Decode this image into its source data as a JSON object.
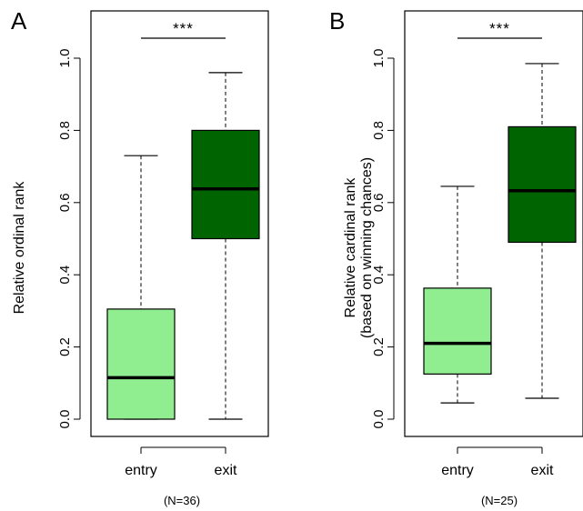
{
  "chart_data": [
    {
      "panel": "A",
      "type": "box",
      "ylabel_lines": [
        "Relative ordinal rank"
      ],
      "ylim": [
        0,
        1
      ],
      "yticks": [
        "0.0",
        "0.2",
        "0.4",
        "0.6",
        "0.8",
        "1.0"
      ],
      "categories": [
        "entry",
        "exit"
      ],
      "boxes": [
        {
          "category": "entry",
          "min": 0.0,
          "q1": 0.0,
          "median": 0.115,
          "q3": 0.305,
          "max": 0.73,
          "color": "#90ee90"
        },
        {
          "category": "exit",
          "min": 0.0,
          "q1": 0.5,
          "median": 0.638,
          "q3": 0.8,
          "max": 0.96,
          "color": "#006400"
        }
      ],
      "significance": "***",
      "n_label": "(N=36)",
      "grid": false
    },
    {
      "panel": "B",
      "type": "box",
      "ylabel_lines": [
        "Relative cardinal rank",
        "(based on winning chances)"
      ],
      "ylim": [
        0,
        1
      ],
      "yticks": [
        "0.0",
        "0.2",
        "0.4",
        "0.6",
        "0.8",
        "1.0"
      ],
      "categories": [
        "entry",
        "exit"
      ],
      "boxes": [
        {
          "category": "entry",
          "min": 0.045,
          "q1": 0.125,
          "median": 0.21,
          "q3": 0.363,
          "max": 0.645,
          "color": "#90ee90"
        },
        {
          "category": "exit",
          "min": 0.058,
          "q1": 0.49,
          "median": 0.633,
          "q3": 0.81,
          "max": 0.985,
          "color": "#006400"
        }
      ],
      "significance": "***",
      "n_label": "(N=25)",
      "grid": false
    }
  ]
}
